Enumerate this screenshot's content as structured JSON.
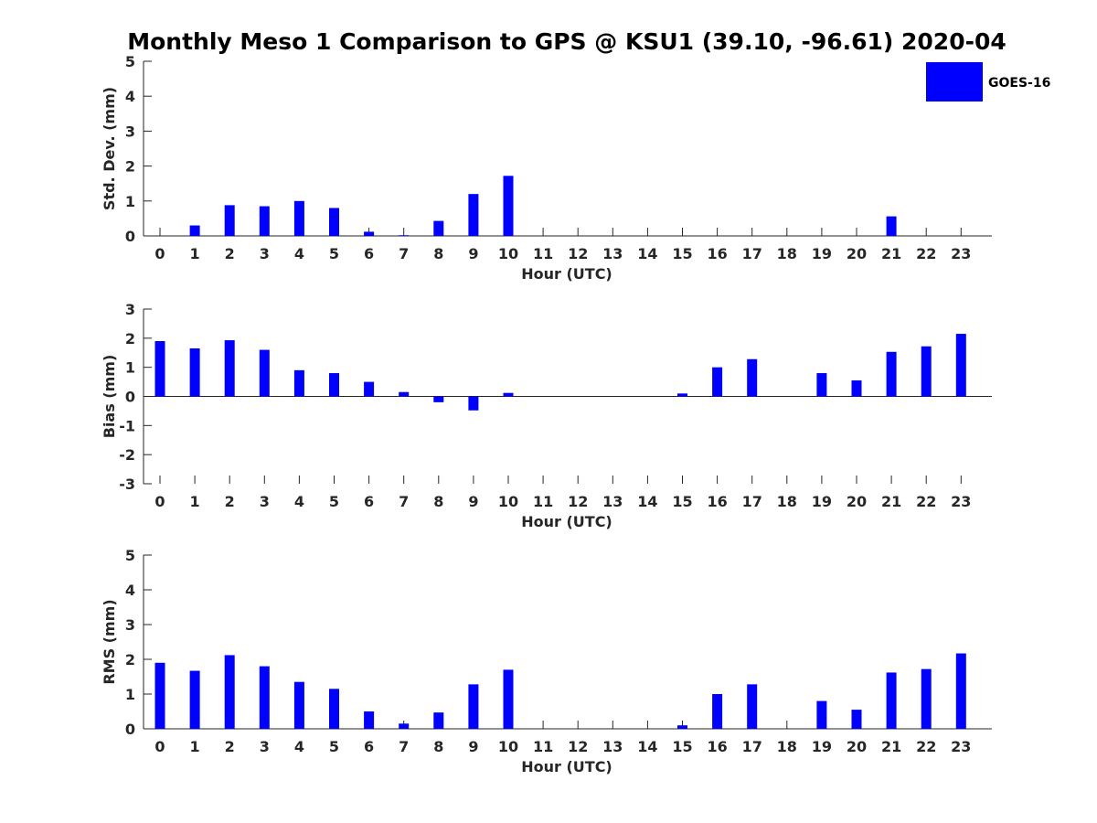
{
  "title": "Monthly Meso 1 Comparison to GPS @ KSU1 (39.10, -96.61) 2020-04",
  "legend": {
    "label": "GOES-16",
    "color": "#0000ff",
    "placement": "top-right"
  },
  "chart_data": [
    {
      "type": "bar",
      "categories": [
        "0",
        "1",
        "2",
        "3",
        "4",
        "5",
        "6",
        "7",
        "8",
        "9",
        "10",
        "11",
        "12",
        "13",
        "14",
        "15",
        "16",
        "17",
        "18",
        "19",
        "20",
        "21",
        "22",
        "23"
      ],
      "series": [
        {
          "name": "GOES-16",
          "color": "#0000ff",
          "values": [
            0,
            0.3,
            0.88,
            0.85,
            1.0,
            0.8,
            0.12,
            0.02,
            0.43,
            1.2,
            1.72,
            0,
            0,
            0,
            0,
            0,
            0,
            0,
            0,
            0,
            0,
            0.56,
            0,
            0
          ]
        }
      ],
      "xlabel": "Hour (UTC)",
      "ylabel": "Std. Dev. (mm)",
      "ylim": [
        0,
        5
      ],
      "yticks": [
        "0",
        "1",
        "2",
        "3",
        "4",
        "5"
      ],
      "grid": false
    },
    {
      "type": "bar",
      "categories": [
        "0",
        "1",
        "2",
        "3",
        "4",
        "5",
        "6",
        "7",
        "8",
        "9",
        "10",
        "11",
        "12",
        "13",
        "14",
        "15",
        "16",
        "17",
        "18",
        "19",
        "20",
        "21",
        "22",
        "23"
      ],
      "series": [
        {
          "name": "GOES-16",
          "color": "#0000ff",
          "values": [
            1.9,
            1.65,
            1.93,
            1.6,
            0.9,
            0.8,
            0.5,
            0.15,
            -0.2,
            -0.48,
            0.12,
            0,
            0,
            0,
            0,
            0.1,
            1.0,
            1.28,
            0,
            0.8,
            0.55,
            1.53,
            1.72,
            2.15
          ]
        }
      ],
      "xlabel": "Hour (UTC)",
      "ylabel": "Bias (mm)",
      "ylim": [
        -3,
        3
      ],
      "yticks": [
        "-3",
        "-2",
        "-1",
        "0",
        "1",
        "2",
        "3"
      ],
      "grid": false
    },
    {
      "type": "bar",
      "categories": [
        "0",
        "1",
        "2",
        "3",
        "4",
        "5",
        "6",
        "7",
        "8",
        "9",
        "10",
        "11",
        "12",
        "13",
        "14",
        "15",
        "16",
        "17",
        "18",
        "19",
        "20",
        "21",
        "22",
        "23"
      ],
      "series": [
        {
          "name": "GOES-16",
          "color": "#0000ff",
          "values": [
            1.9,
            1.67,
            2.12,
            1.8,
            1.35,
            1.15,
            0.5,
            0.15,
            0.47,
            1.28,
            1.7,
            0,
            0,
            0,
            0,
            0.1,
            1.0,
            1.28,
            0,
            0.8,
            0.55,
            1.62,
            1.72,
            2.17
          ]
        }
      ],
      "xlabel": "Hour (UTC)",
      "ylabel": "RMS (mm)",
      "ylim": [
        0,
        5
      ],
      "yticks": [
        "0",
        "1",
        "2",
        "3",
        "4",
        "5"
      ],
      "grid": false
    }
  ]
}
